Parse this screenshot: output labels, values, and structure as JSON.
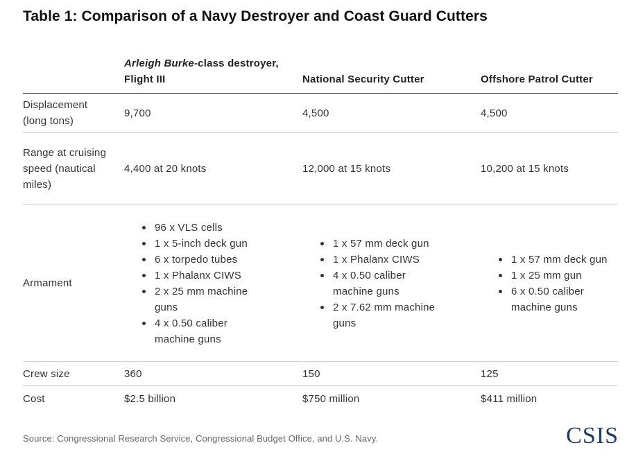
{
  "title": "Table 1: Comparison of a Navy Destroyer and Coast Guard Cutters",
  "columns": {
    "destroyer_italic": "Arleigh Burke",
    "destroyer_rest": "-class destroyer, Flight III",
    "nsc": "National Security Cutter",
    "opc": "Offshore Patrol Cutter"
  },
  "rows": {
    "displacement": {
      "label": "Displacement (long tons)",
      "values": [
        "9,700",
        "4,500",
        "4,500"
      ]
    },
    "range": {
      "label": "Range at cruising speed (nautical miles)",
      "values": [
        "4,400 at 20 knots",
        "12,000 at 15 knots",
        "10,200 at 15 knots"
      ]
    },
    "armament": {
      "label": "Armament",
      "destroyer": [
        "96 x VLS cells",
        "1 x 5-inch deck gun",
        "6 x torpedo tubes",
        "1 x Phalanx CIWS",
        "2 x 25 mm machine guns",
        "4 x 0.50 caliber machine guns"
      ],
      "nsc": [
        "1 x 57 mm deck gun",
        "1 x Phalanx CIWS",
        "4 x 0.50 caliber machine guns",
        "2 x 7.62 mm machine guns"
      ],
      "opc": [
        "1 x 57 mm deck gun",
        "1 x 25 mm gun",
        "6 x 0.50 caliber machine guns"
      ]
    },
    "crew": {
      "label": "Crew size",
      "values": [
        "360",
        "150",
        "125"
      ]
    },
    "cost": {
      "label": "Cost",
      "values": [
        "$2.5 billion",
        "$750 million",
        "$411 million"
      ]
    }
  },
  "source": "Source: Congressional Research Service, Congressional Budget Office, and U.S. Navy.",
  "logo": "CSIS",
  "colors": {
    "logo": "#1b3a6b",
    "rule": "#333333",
    "divider": "#cfcfcf"
  }
}
